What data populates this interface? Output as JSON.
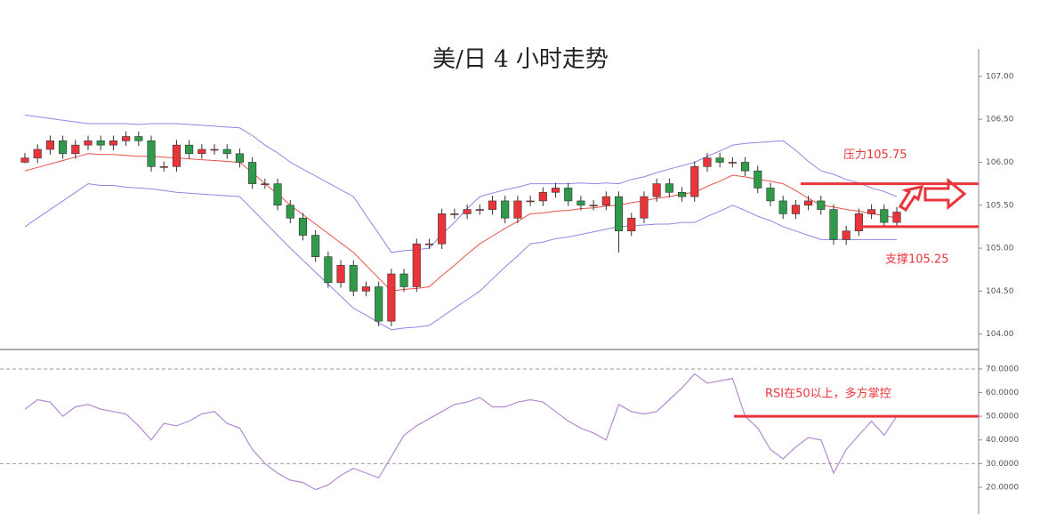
{
  "chart_data": [
    {
      "type": "candlestick",
      "title": "美/日 4 小时走势",
      "open": [
        106.0,
        106.05,
        106.15,
        106.25,
        106.1,
        106.2,
        106.25,
        106.2,
        106.25,
        106.3,
        106.25,
        105.95,
        105.95,
        106.2,
        106.1,
        106.15,
        106.15,
        106.1,
        106.0,
        105.75,
        105.75,
        105.5,
        105.35,
        105.15,
        104.9,
        104.6,
        104.8,
        104.5,
        104.55,
        104.15,
        104.7,
        104.55,
        105.05,
        105.05,
        105.4,
        105.4,
        105.45,
        105.45,
        105.55,
        105.35,
        105.55,
        105.55,
        105.65,
        105.7,
        105.55,
        105.5,
        105.5,
        105.6,
        105.2,
        105.35,
        105.6,
        105.75,
        105.65,
        105.6,
        105.95,
        106.05,
        106.0,
        106.0,
        105.9,
        105.7,
        105.55,
        105.4,
        105.5,
        105.55,
        105.45,
        105.1,
        105.2,
        105.4,
        105.45,
        105.3
      ],
      "high": [
        106.11,
        106.21,
        106.31,
        106.31,
        106.26,
        106.31,
        106.31,
        106.31,
        106.36,
        106.36,
        106.31,
        106.01,
        106.26,
        106.26,
        106.21,
        106.21,
        106.21,
        106.16,
        106.06,
        105.81,
        105.81,
        105.56,
        105.41,
        105.21,
        104.96,
        104.86,
        104.86,
        104.61,
        104.61,
        104.76,
        104.76,
        105.11,
        105.11,
        105.46,
        105.46,
        105.51,
        105.51,
        105.61,
        105.61,
        105.61,
        105.61,
        105.71,
        105.76,
        105.76,
        105.61,
        105.56,
        105.66,
        105.66,
        105.41,
        105.66,
        105.81,
        105.81,
        105.71,
        106.01,
        106.11,
        106.11,
        106.06,
        106.06,
        105.96,
        105.76,
        105.61,
        105.56,
        105.61,
        105.61,
        105.51,
        105.26,
        105.46,
        105.51,
        105.51,
        105.48
      ],
      "low": [
        105.99,
        105.99,
        106.09,
        106.04,
        106.04,
        106.14,
        106.14,
        106.14,
        106.19,
        106.19,
        105.89,
        105.89,
        105.89,
        106.04,
        106.04,
        106.09,
        106.04,
        105.94,
        105.69,
        105.69,
        105.44,
        105.29,
        105.09,
        104.84,
        104.54,
        104.54,
        104.44,
        104.44,
        104.09,
        104.09,
        104.49,
        104.49,
        104.99,
        104.99,
        105.34,
        105.34,
        105.39,
        105.39,
        105.29,
        105.29,
        105.49,
        105.49,
        105.59,
        105.49,
        105.44,
        105.44,
        105.44,
        104.95,
        105.14,
        105.29,
        105.54,
        105.59,
        105.54,
        105.54,
        105.89,
        105.94,
        105.94,
        105.84,
        105.64,
        105.49,
        105.34,
        105.34,
        105.44,
        105.39,
        105.04,
        105.04,
        105.14,
        105.34,
        105.24,
        105.24
      ],
      "close": [
        106.05,
        106.15,
        106.25,
        106.1,
        106.2,
        106.25,
        106.2,
        106.25,
        106.3,
        106.25,
        105.95,
        105.95,
        106.2,
        106.1,
        106.15,
        106.15,
        106.1,
        106.0,
        105.75,
        105.75,
        105.5,
        105.35,
        105.15,
        104.9,
        104.6,
        104.8,
        104.5,
        104.55,
        104.15,
        104.7,
        104.55,
        105.05,
        105.05,
        105.4,
        105.4,
        105.45,
        105.45,
        105.55,
        105.35,
        105.55,
        105.55,
        105.65,
        105.7,
        105.55,
        105.5,
        105.5,
        105.6,
        105.2,
        105.35,
        105.6,
        105.75,
        105.65,
        105.6,
        105.95,
        106.05,
        106.0,
        106.0,
        105.9,
        105.7,
        105.55,
        105.4,
        105.5,
        105.55,
        105.45,
        105.1,
        105.2,
        105.4,
        105.45,
        105.3,
        105.42
      ],
      "up_color": "#e8343a",
      "down_color": "#2e9a4a",
      "lines": [
        {
          "color": "#e8524a",
          "values": [
            105.9,
            105.94,
            105.98,
            106.02,
            106.06,
            106.1,
            106.09,
            106.09,
            106.08,
            106.07,
            106.07,
            106.06,
            106.05,
            106.04,
            106.03,
            106.02,
            106.01,
            106.0,
            105.88,
            105.75,
            105.63,
            105.5,
            105.39,
            105.28,
            105.17,
            105.06,
            104.95,
            104.8,
            104.65,
            104.5,
            104.52,
            104.53,
            104.55,
            104.68,
            104.8,
            104.93,
            105.05,
            105.14,
            105.23,
            105.31,
            105.4,
            105.41,
            105.43,
            105.44,
            105.46,
            105.47,
            105.49,
            105.5,
            105.53,
            105.55,
            105.58,
            105.6,
            105.63,
            105.65,
            105.72,
            105.78,
            105.85,
            105.83,
            105.8,
            105.78,
            105.75,
            105.67,
            105.58,
            105.5,
            105.48,
            105.45,
            105.43,
            105.4,
            105.38,
            105.35
          ]
        },
        {
          "color": "#8f86e0",
          "values": [
            106.55,
            106.53,
            106.51,
            106.49,
            106.47,
            106.45,
            106.45,
            106.45,
            106.45,
            106.44,
            106.45,
            106.45,
            106.45,
            106.44,
            106.43,
            106.42,
            106.41,
            106.4,
            106.31,
            106.2,
            106.11,
            106.0,
            105.92,
            105.84,
            105.76,
            105.68,
            105.6,
            105.38,
            105.17,
            104.95,
            104.97,
            104.98,
            105.0,
            105.16,
            105.3,
            105.46,
            105.6,
            105.64,
            105.68,
            105.71,
            105.75,
            105.75,
            105.75,
            105.75,
            105.76,
            105.75,
            105.76,
            105.75,
            105.8,
            105.83,
            105.88,
            105.92,
            105.96,
            106.0,
            106.07,
            106.13,
            106.2,
            106.22,
            106.23,
            106.24,
            106.25,
            106.14,
            106.01,
            105.9,
            105.86,
            105.8,
            105.76,
            105.7,
            105.66,
            105.6
          ]
        },
        {
          "color": "#8f86e0",
          "values": [
            105.25,
            105.35,
            105.45,
            105.55,
            105.65,
            105.75,
            105.73,
            105.73,
            105.71,
            105.7,
            105.69,
            105.67,
            105.65,
            105.64,
            105.63,
            105.62,
            105.61,
            105.6,
            105.45,
            105.3,
            105.15,
            105.0,
            104.86,
            104.72,
            104.58,
            104.44,
            104.3,
            104.22,
            104.13,
            104.05,
            104.07,
            104.08,
            104.1,
            104.2,
            104.3,
            104.4,
            104.5,
            104.64,
            104.78,
            104.91,
            105.05,
            105.07,
            105.11,
            105.13,
            105.16,
            105.19,
            105.22,
            105.25,
            105.26,
            105.27,
            105.28,
            105.28,
            105.3,
            105.3,
            105.37,
            105.43,
            105.5,
            105.44,
            105.37,
            105.32,
            105.25,
            105.2,
            105.15,
            105.1,
            105.1,
            105.1,
            105.1,
            105.1,
            105.1,
            105.1
          ]
        }
      ],
      "ylim": [
        103.82,
        107.32
      ],
      "yticks": [
        {
          "value": 104,
          "label": "104.00"
        },
        {
          "value": 104.5,
          "label": "104.50"
        },
        {
          "value": 105,
          "label": "105.00"
        },
        {
          "value": 105.5,
          "label": "105.50"
        },
        {
          "value": 106,
          "label": "106.00"
        },
        {
          "value": 106.5,
          "label": "106.50"
        },
        {
          "value": 107,
          "label": "107.00"
        }
      ],
      "levels": [
        {
          "value": 105.75,
          "label": "压力105.75",
          "color": "#e8343a"
        },
        {
          "value": 105.25,
          "label": "支撑105.25",
          "color": "#e8343a"
        }
      ]
    },
    {
      "type": "line",
      "values": [
        53,
        57,
        56,
        50,
        54,
        55,
        53,
        52,
        51,
        46,
        40,
        47,
        46,
        48,
        51,
        52,
        47,
        45,
        36,
        30,
        26,
        23,
        22,
        19,
        21,
        25,
        28,
        26,
        24,
        33,
        42,
        46,
        49,
        52,
        55,
        56,
        58,
        54,
        54,
        56,
        57,
        56,
        52,
        48,
        45,
        43,
        40,
        55,
        52,
        51,
        52,
        57,
        62,
        68,
        64,
        65,
        66,
        50,
        45,
        36,
        32,
        37,
        41,
        40,
        26,
        36,
        42,
        48,
        42,
        50
      ],
      "color": "#b48ad0",
      "ylim": [
        8.7,
        77.5
      ],
      "yticks": [
        {
          "value": 20,
          "label": "20.0000"
        },
        {
          "value": 30,
          "label": "30.0000"
        },
        {
          "value": 40,
          "label": "40.0000"
        },
        {
          "value": 50,
          "label": "50.0000"
        },
        {
          "value": 60,
          "label": "60.0000"
        },
        {
          "value": 70,
          "label": "70.0000"
        }
      ],
      "ref_lines": [
        30,
        70
      ],
      "levels": [
        {
          "value": 50,
          "label": "RSI在50以上，多方掌控",
          "color": "#e8343a"
        }
      ]
    }
  ]
}
